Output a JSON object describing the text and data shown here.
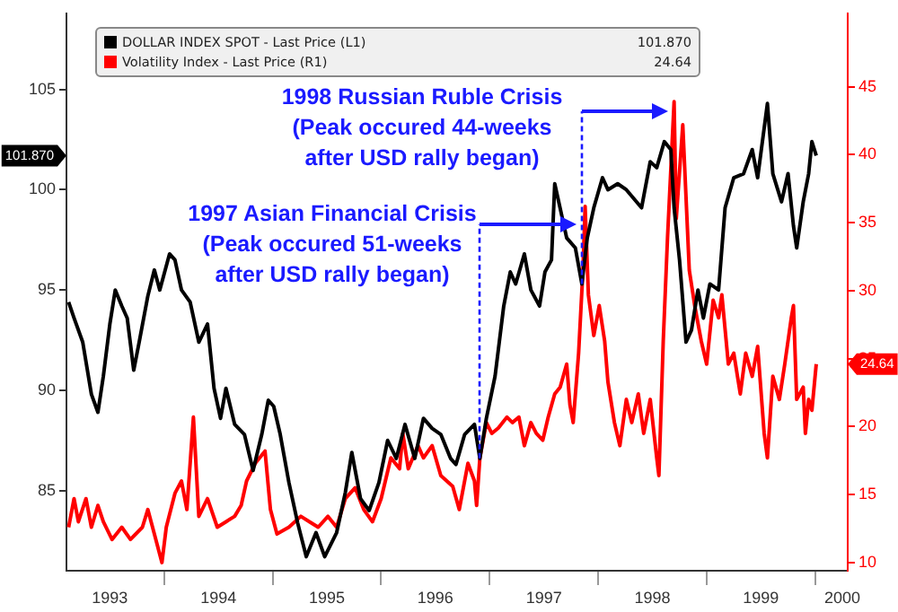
{
  "chart_data": {
    "type": "line",
    "xlim": [
      1993.1,
      2000.3
    ],
    "xticks": [
      {
        "value": 1993.5,
        "label": "1993"
      },
      {
        "value": 1994,
        "label": null
      },
      {
        "value": 1994.5,
        "label": "1994"
      },
      {
        "value": 1995,
        "label": null
      },
      {
        "value": 1995.5,
        "label": "1995"
      },
      {
        "value": 1996,
        "label": null
      },
      {
        "value": 1996.5,
        "label": "1996"
      },
      {
        "value": 1997,
        "label": null
      },
      {
        "value": 1997.5,
        "label": "1997"
      },
      {
        "value": 1998,
        "label": null
      },
      {
        "value": 1998.5,
        "label": "1998"
      },
      {
        "value": 1999,
        "label": null
      },
      {
        "value": 1999.5,
        "label": "1999"
      },
      {
        "value": 2000,
        "label": null
      },
      {
        "value": 2000.25,
        "label": "2000"
      }
    ],
    "ylim": [
      81,
      108.8
    ],
    "yticks": [
      85,
      90,
      95,
      100,
      105
    ],
    "y2lim": [
      9.4,
      50.4
    ],
    "y2ticks": [
      10,
      15,
      20,
      25,
      30,
      35,
      40,
      45
    ],
    "legend": "top",
    "grid": false,
    "marker": "none",
    "annotations": [
      {
        "text": "1998 Russian Ruble Crisis\n(Peak occured 44-weeks\nafter USD rally began)",
        "x": 1997.85,
        "y": 95.3
      },
      {
        "text": "1997 Asian Financial Crisis\n(Peak occured 51-weeks\nafter USD rally began)",
        "x": 1996.91,
        "y": 86.6
      },
      "101.870",
      "24.64"
    ],
    "series": [
      {
        "name": "DOLLAR INDEX SPOT - Last Price (L1)",
        "color": "#000000",
        "x": [
          1993.12,
          1993.17,
          1993.25,
          1993.33,
          1993.39,
          1993.44,
          1993.5,
          1993.55,
          1993.61,
          1993.66,
          1993.72,
          1993.77,
          1993.85,
          1993.91,
          1993.96,
          1994.05,
          1994.1,
          1994.16,
          1994.24,
          1994.32,
          1994.4,
          1994.46,
          1994.52,
          1994.57,
          1994.65,
          1994.74,
          1994.82,
          1994.9,
          1994.96,
          1995.01,
          1995.07,
          1995.15,
          1995.23,
          1995.31,
          1995.4,
          1995.48,
          1995.59,
          1995.67,
          1995.73,
          1995.81,
          1995.89,
          1995.98,
          1996.06,
          1996.14,
          1996.22,
          1996.31,
          1996.39,
          1996.47,
          1996.55,
          1996.64,
          1996.69,
          1996.77,
          1996.86,
          1996.91,
          1996.97,
          1997.05,
          1997.13,
          1997.19,
          1997.24,
          1997.32,
          1997.38,
          1997.46,
          1997.51,
          1997.57,
          1997.6,
          1997.71,
          1997.79,
          1997.85,
          1997.9,
          1997.96,
          1998.04,
          1998.09,
          1998.18,
          1998.26,
          1998.4,
          1998.48,
          1998.54,
          1998.61,
          1998.67,
          1998.7,
          1998.75,
          1998.81,
          1998.86,
          1998.92,
          1998.97,
          1999.03,
          1999.11,
          1999.17,
          1999.25,
          1999.34,
          1999.42,
          1999.47,
          1999.56,
          1999.61,
          1999.69,
          1999.75,
          1999.8,
          1999.83,
          1999.89,
          1999.94,
          1999.97,
          2000.01
        ],
        "values": [
          94.4,
          93.6,
          92.4,
          89.8,
          88.9,
          90.7,
          93.3,
          95.0,
          94.2,
          93.6,
          91.0,
          92.4,
          94.7,
          96.0,
          95.0,
          96.8,
          96.5,
          95.0,
          94.4,
          92.4,
          93.3,
          90.1,
          88.6,
          90.1,
          88.3,
          87.8,
          86.0,
          87.8,
          89.5,
          89.2,
          87.8,
          85.4,
          83.4,
          81.7,
          82.9,
          81.7,
          82.9,
          84.9,
          86.9,
          84.6,
          84.0,
          85.4,
          87.5,
          86.6,
          88.3,
          86.6,
          88.6,
          88.1,
          87.8,
          86.6,
          86.3,
          87.8,
          88.3,
          86.6,
          88.6,
          90.7,
          94.2,
          95.9,
          95.3,
          96.8,
          95.0,
          94.2,
          95.9,
          96.5,
          100.3,
          97.6,
          97.1,
          95.3,
          97.6,
          99.1,
          100.6,
          100.0,
          100.3,
          100.0,
          99.1,
          101.4,
          101.1,
          102.4,
          102.0,
          99.1,
          96.5,
          92.4,
          93.0,
          95.0,
          93.6,
          95.3,
          95.0,
          99.1,
          100.6,
          100.8,
          102.0,
          100.6,
          104.3,
          100.8,
          99.4,
          100.8,
          98.2,
          97.1,
          99.4,
          100.8,
          102.4,
          101.7
        ]
      },
      {
        "name": "Volatility Index - Last Price (R1)",
        "color": "#ff0000",
        "axis": "y2",
        "x": [
          1993.12,
          1993.17,
          1993.21,
          1993.28,
          1993.33,
          1993.39,
          1993.44,
          1993.52,
          1993.61,
          1993.69,
          1993.8,
          1993.85,
          1993.91,
          1993.98,
          1994.02,
          1994.1,
          1994.16,
          1994.21,
          1994.27,
          1994.32,
          1994.4,
          1994.49,
          1994.57,
          1994.65,
          1994.71,
          1994.76,
          1994.84,
          1994.93,
          1994.98,
          1995.04,
          1995.15,
          1995.26,
          1995.34,
          1995.42,
          1995.51,
          1995.59,
          1995.67,
          1995.76,
          1995.84,
          1995.92,
          1996.0,
          1996.09,
          1996.17,
          1996.2,
          1996.25,
          1996.34,
          1996.39,
          1996.47,
          1996.55,
          1996.66,
          1996.72,
          1996.8,
          1996.86,
          1996.88,
          1996.91,
          1996.97,
          1997.02,
          1997.08,
          1997.16,
          1997.21,
          1997.27,
          1997.32,
          1997.38,
          1997.43,
          1997.49,
          1997.54,
          1997.6,
          1997.65,
          1997.71,
          1997.74,
          1997.77,
          1997.82,
          1997.86,
          1997.88,
          1997.91,
          1997.96,
          1998.01,
          1998.06,
          1998.09,
          1998.15,
          1998.2,
          1998.26,
          1998.31,
          1998.37,
          1998.42,
          1998.48,
          1998.54,
          1998.56,
          1998.6,
          1998.64,
          1998.7,
          1998.72,
          1998.78,
          1998.84,
          1998.89,
          1998.95,
          1999.0,
          1999.06,
          1999.11,
          1999.14,
          1999.2,
          1999.25,
          1999.31,
          1999.36,
          1999.42,
          1999.47,
          1999.53,
          1999.56,
          1999.61,
          1999.67,
          1999.72,
          1999.78,
          1999.8,
          1999.83,
          1999.89,
          1999.91,
          1999.94,
          1999.97,
          2000.01
        ],
        "values": [
          12.6,
          14.7,
          13.0,
          14.7,
          12.6,
          14.2,
          13.0,
          11.7,
          12.6,
          11.7,
          12.6,
          13.9,
          12.1,
          10.0,
          12.6,
          15.1,
          16.0,
          13.9,
          20.7,
          13.4,
          14.7,
          12.6,
          13.0,
          13.4,
          14.2,
          16.0,
          17.3,
          18.2,
          13.9,
          12.1,
          12.6,
          13.4,
          13.0,
          12.6,
          13.4,
          12.6,
          14.7,
          15.5,
          13.9,
          13.0,
          14.7,
          17.7,
          16.9,
          19.5,
          16.9,
          18.6,
          17.7,
          18.6,
          16.4,
          15.6,
          13.9,
          17.3,
          16.0,
          14.2,
          17.7,
          20.3,
          19.5,
          19.9,
          20.7,
          20.3,
          20.7,
          18.6,
          20.3,
          19.5,
          19.0,
          20.7,
          22.4,
          22.9,
          24.6,
          21.6,
          20.3,
          25.4,
          31.5,
          36.2,
          29.7,
          26.7,
          28.9,
          26.3,
          23.3,
          20.3,
          18.6,
          22.0,
          20.3,
          22.4,
          19.5,
          22.0,
          17.7,
          16.4,
          26.3,
          34.0,
          43.9,
          35.3,
          42.2,
          31.5,
          28.9,
          26.3,
          24.6,
          29.3,
          28.0,
          29.7,
          24.6,
          25.4,
          22.4,
          25.4,
          23.7,
          25.9,
          19.5,
          17.7,
          23.7,
          22.0,
          24.6,
          28.0,
          28.9,
          22.0,
          22.9,
          19.5,
          22.0,
          21.2,
          24.6
        ]
      }
    ]
  }
}
